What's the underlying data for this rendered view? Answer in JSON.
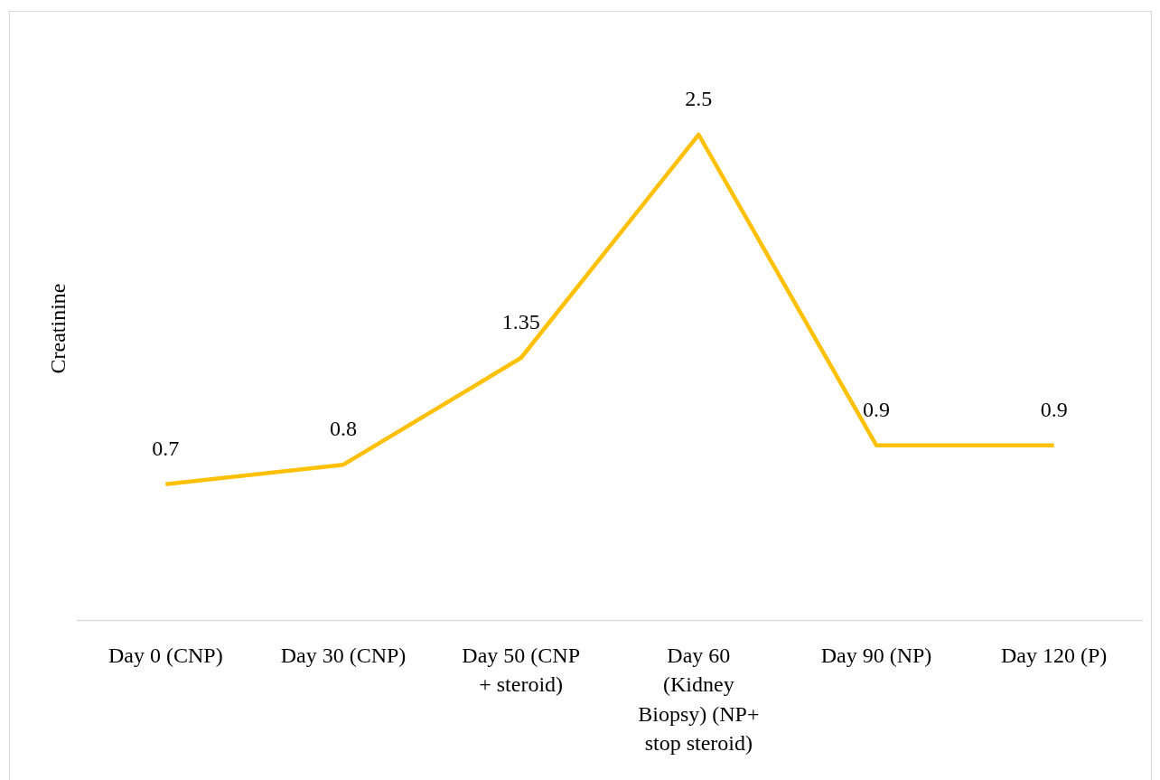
{
  "chart_data": {
    "type": "line",
    "ylabel": "Creatinine",
    "categories": [
      "Day 0 (CNP)",
      "Day 30 (CNP)",
      "Day 50 (CNP + steroid)",
      "Day 60 (Kidney Biopsy) (NP+ stop steroid)",
      "Day 90 (NP)",
      "Day 120 (P)"
    ],
    "series": [
      {
        "color": "#ffc000",
        "values": [
          0.7,
          0.8,
          1.35,
          2.5,
          0.9,
          0.9
        ]
      }
    ],
    "data_labels": true,
    "marker": "none",
    "line_style": "solid",
    "tick_labels": "x"
  }
}
